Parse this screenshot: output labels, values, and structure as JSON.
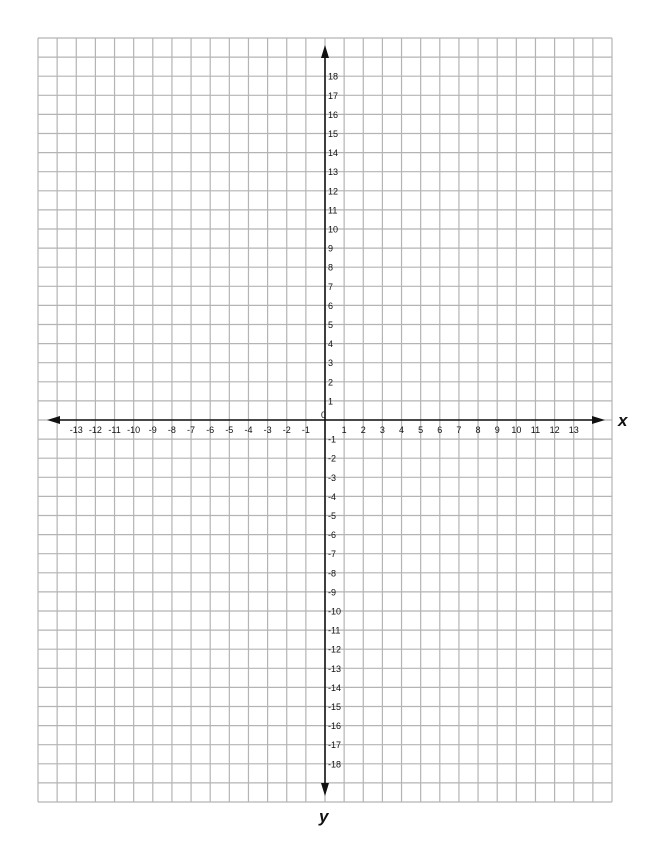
{
  "grid": {
    "x_range": [
      -15,
      15
    ],
    "y_range": [
      -20,
      20
    ],
    "x_tick_labels": [
      -13,
      -12,
      -11,
      -10,
      -9,
      -8,
      -7,
      -6,
      -5,
      -4,
      -3,
      -2,
      -1,
      1,
      2,
      3,
      4,
      5,
      6,
      7,
      8,
      9,
      10,
      11,
      12,
      13
    ],
    "y_tick_labels": [
      18,
      17,
      16,
      15,
      14,
      13,
      12,
      11,
      10,
      9,
      8,
      7,
      6,
      5,
      4,
      3,
      2,
      1,
      -1,
      -2,
      -3,
      -4,
      -5,
      -6,
      -7,
      -8,
      -9,
      -10,
      -11,
      -12,
      -13,
      -14,
      -15,
      -16,
      -17,
      -18
    ],
    "origin_label": "0",
    "x_axis_label": "x",
    "y_axis_label": "y",
    "grid_color": "#b4b4b4",
    "axis_color": "#111111"
  }
}
